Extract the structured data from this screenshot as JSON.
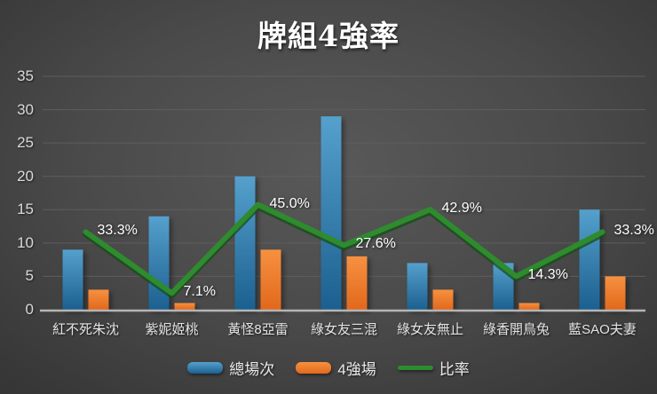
{
  "chart_data": {
    "type": "bar",
    "subtype": "combo-bar-line",
    "title": "牌組4強率",
    "categories": [
      "紅不死朱沈",
      "紫妮姬桃",
      "黃怪8亞雷",
      "綠女友三混",
      "綠女友無止",
      "綠香開鳥兔",
      "藍SAO夫妻"
    ],
    "series": [
      {
        "name": "總場次",
        "type": "bar",
        "color": "#2e7cab",
        "gradient": [
          "#55a0cc",
          "#1c6090"
        ],
        "values": [
          9,
          14,
          20,
          29,
          7,
          7,
          15
        ]
      },
      {
        "name": "4強場",
        "type": "bar",
        "color": "#ed7d31",
        "gradient": [
          "#f69140",
          "#e2681c"
        ],
        "values": [
          3,
          1,
          9,
          8,
          3,
          1,
          5
        ]
      },
      {
        "name": "比率",
        "type": "line",
        "color": "#2e8b2e",
        "shadow_color": "#164e16",
        "values_percent": [
          33.3,
          7.1,
          45.0,
          27.6,
          42.9,
          14.3,
          33.3
        ],
        "labels": [
          "33.3%",
          "7.1%",
          "45.0%",
          "27.6%",
          "42.9%",
          "14.3%",
          "33.3%"
        ],
        "secondary_axis_max_percent": 100
      }
    ],
    "xlabel": "",
    "ylabel": "",
    "ylim": [
      0,
      35
    ],
    "y_ticks": [
      0,
      5,
      10,
      15,
      20,
      25,
      30,
      35
    ],
    "grid": true,
    "legend_position": "bottom",
    "background_center": "#595959",
    "background_edge": "#2a2a2a",
    "gridline_color": "#606060",
    "axis_line_color": "#b5b5b5"
  }
}
